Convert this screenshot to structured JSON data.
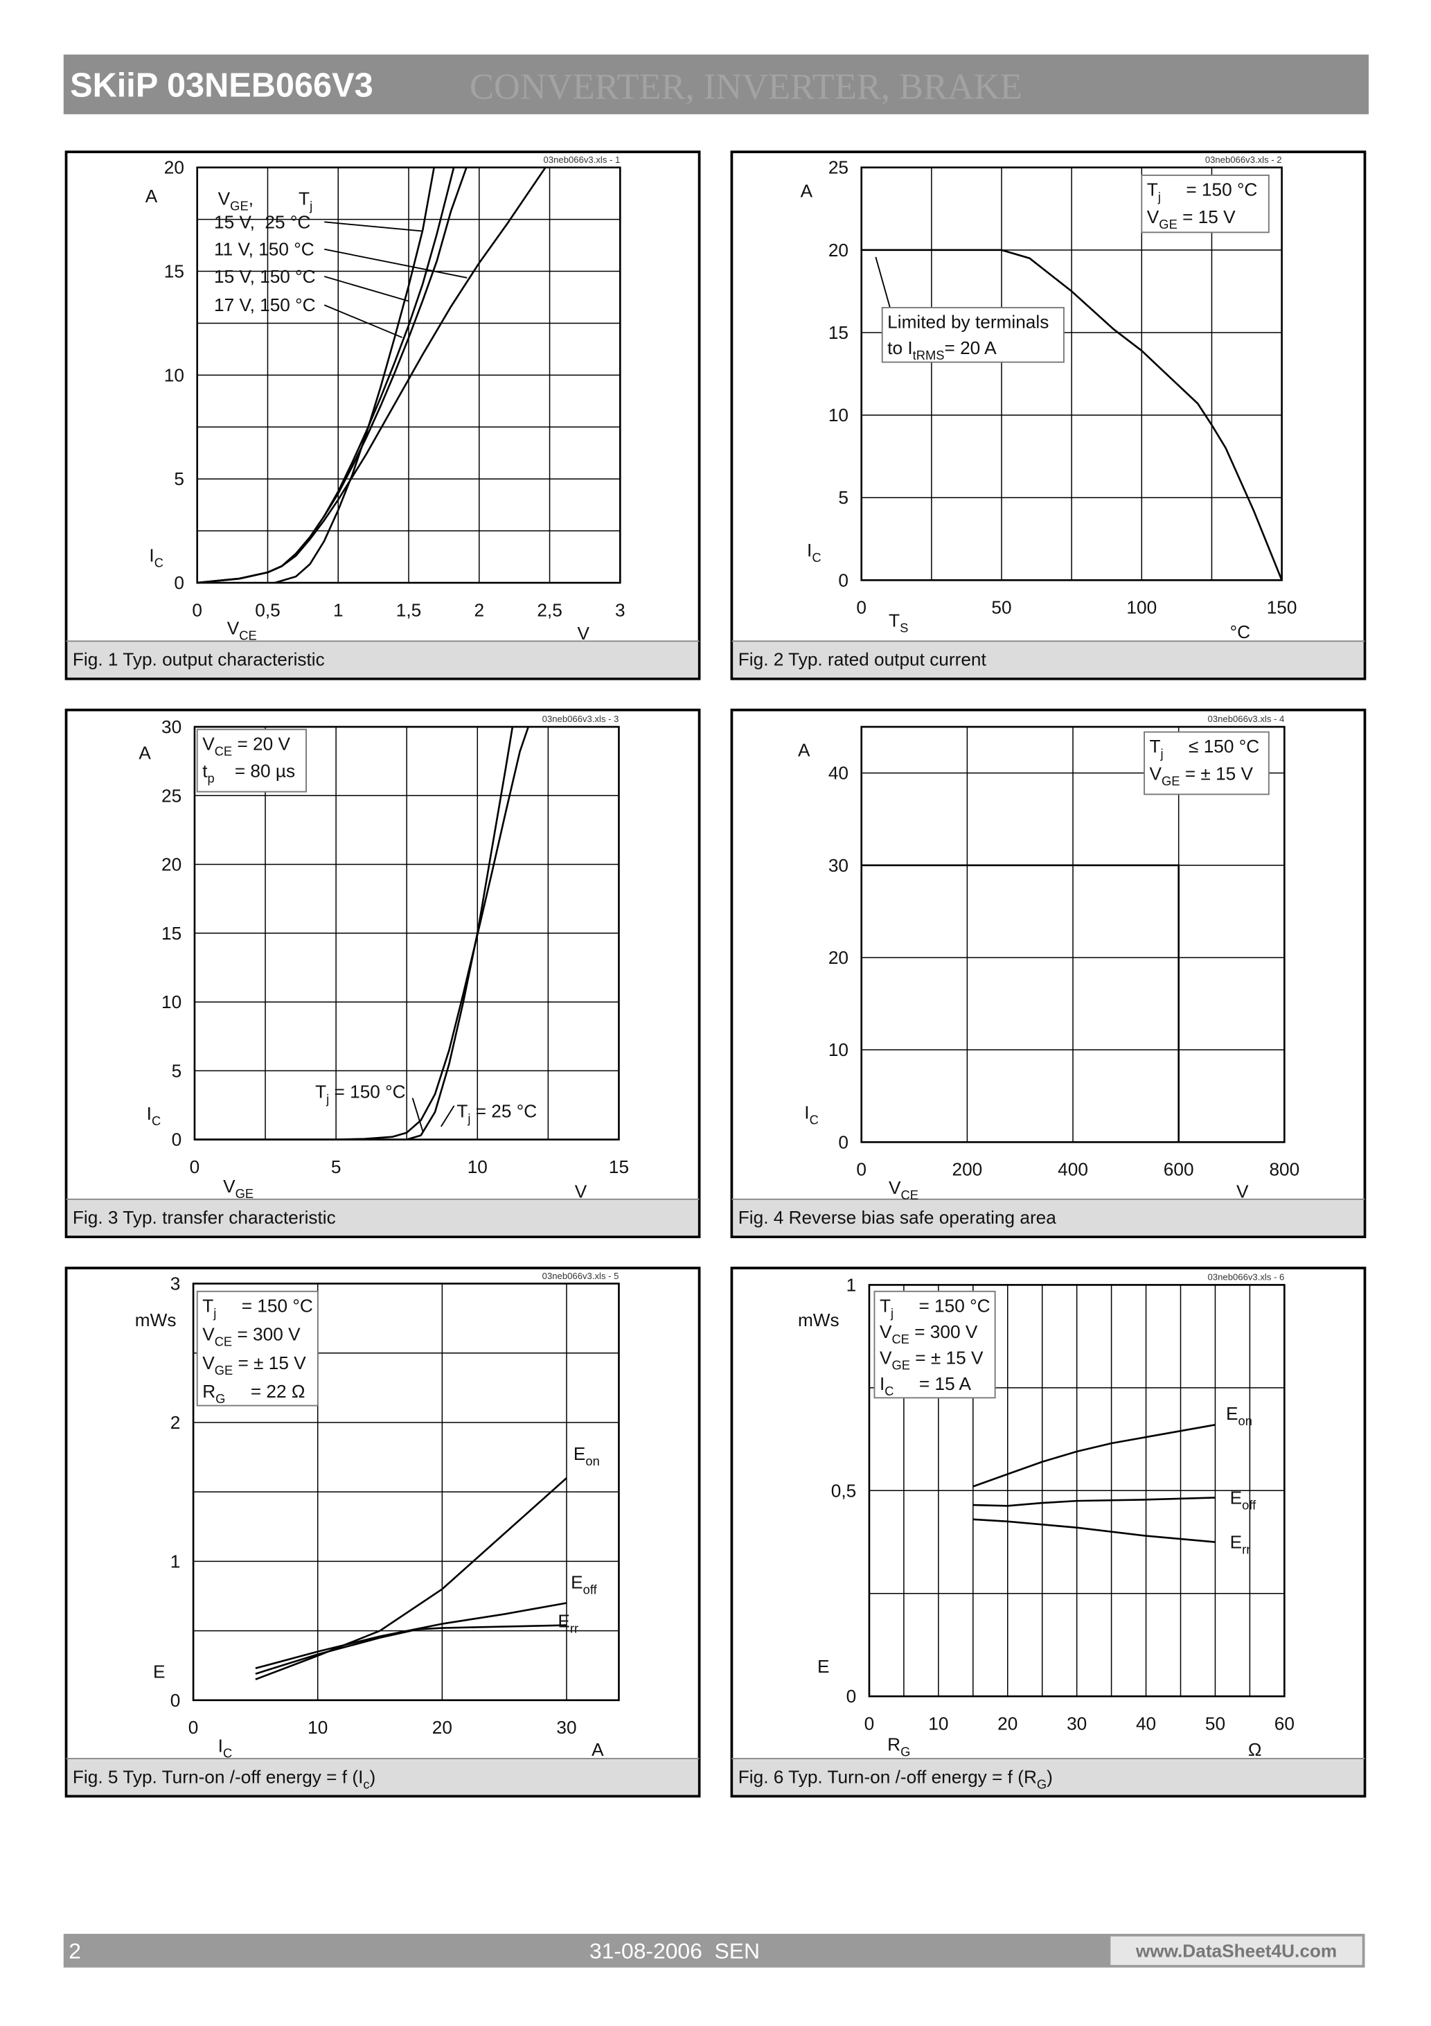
{
  "header": {
    "title": "SKiiP 03NEB066V3",
    "subtitle": "CONVERTER, INVERTER, BRAKE"
  },
  "footer": {
    "page": "2",
    "date": "31-08-2006  SEN",
    "site": "www.DataSheet4U.com"
  },
  "chart_data": [
    {
      "type": "line",
      "caption": [
        "Fig. 1 Typ. output characteristic"
      ],
      "file": "03neb066v3.xls - 1",
      "xlabel": [
        "V",
        "CE"
      ],
      "xunit": [
        "V"
      ],
      "ylabel": [
        "I",
        "C"
      ],
      "yunit": [
        "A"
      ],
      "color": "#000000",
      "xlim": [
        0,
        3
      ],
      "xticks": [
        0,
        {
          "value": 0.5,
          "label": "0,5"
        },
        1,
        {
          "value": 1.5,
          "label": "1,5"
        },
        2,
        {
          "value": 2.5,
          "label": "2,5"
        },
        3
      ],
      "ylim": [
        0,
        20
      ],
      "yticks": [
        0,
        5,
        10,
        15,
        20
      ],
      "ygrid_minor": [
        2.5,
        7.5,
        12.5,
        17.5
      ],
      "legend_title": [
        "V",
        "GE",
        ",         T",
        "j"
      ],
      "series": [
        {
          "name": [
            "15 V,  25 °C"
          ],
          "x": [
            0.55,
            0.7,
            0.8,
            0.9,
            1.0,
            1.1,
            1.2,
            1.3,
            1.4,
            1.5,
            1.6,
            1.68
          ],
          "values": [
            0,
            0.3,
            0.9,
            2,
            3.5,
            5.2,
            7.2,
            9.4,
            11.8,
            14.3,
            17,
            20
          ]
        },
        {
          "name": [
            "11 V, 150 °C"
          ],
          "x": [
            0,
            0.3,
            0.5,
            0.6,
            0.7,
            0.8,
            0.9,
            1.0,
            1.2,
            1.4,
            1.6,
            1.8,
            2.0,
            2.2,
            2.47
          ],
          "values": [
            0,
            0.2,
            0.5,
            0.8,
            1.3,
            2.1,
            3.0,
            4.0,
            6.2,
            8.6,
            11.0,
            13.3,
            15.4,
            17.3,
            20
          ]
        },
        {
          "name": [
            "15 V, 150 °C"
          ],
          "x": [
            0,
            0.3,
            0.5,
            0.6,
            0.7,
            0.8,
            0.9,
            1.0,
            1.1,
            1.2,
            1.3,
            1.4,
            1.5,
            1.6,
            1.7,
            1.8,
            1.91
          ],
          "values": [
            0,
            0.2,
            0.5,
            0.8,
            1.4,
            2.2,
            3.2,
            4.3,
            5.6,
            7.0,
            8.5,
            10.1,
            11.8,
            13.6,
            15.5,
            17.9,
            20
          ]
        },
        {
          "name": [
            "17 V, 150 °C"
          ],
          "x": [
            0,
            0.3,
            0.5,
            0.6,
            0.7,
            0.8,
            0.9,
            1.0,
            1.1,
            1.2,
            1.3,
            1.4,
            1.5,
            1.6,
            1.7,
            1.82
          ],
          "values": [
            0,
            0.2,
            0.5,
            0.8,
            1.4,
            2.2,
            3.2,
            4.4,
            5.8,
            7.3,
            8.9,
            10.6,
            12.4,
            14.4,
            16.8,
            20
          ]
        }
      ]
    },
    {
      "type": "line",
      "caption": [
        "Fig. 2 Typ. rated output current"
      ],
      "file": "03neb066v3.xls - 2",
      "xlabel": [
        "T",
        "S"
      ],
      "xunit": [
        "°C"
      ],
      "ylabel": [
        "I",
        "C"
      ],
      "yunit": [
        "A"
      ],
      "color": "#000000",
      "xlim": [
        0,
        150
      ],
      "xticks": [
        0,
        50,
        100,
        150
      ],
      "xgrid_minor": [
        25,
        75,
        125
      ],
      "ylim": [
        0,
        25
      ],
      "yticks": [
        0,
        5,
        10,
        15,
        20,
        25
      ],
      "boxes": [
        [
          [
            "T",
            "j",
            "     = 150 °C"
          ],
          [
            "V",
            "GE",
            " = 15 V"
          ]
        ],
        [
          [
            "Limited by terminals"
          ],
          [
            "to I",
            "tRMS",
            "= 20 A"
          ]
        ]
      ],
      "series": [
        {
          "x": [
            0,
            50,
            60,
            75,
            90,
            100,
            110,
            120,
            125,
            130,
            140,
            150
          ],
          "values": [
            20,
            20,
            19.5,
            17.5,
            15.2,
            13.9,
            12.3,
            10.7,
            9.4,
            8,
            4.2,
            0
          ]
        }
      ]
    },
    {
      "type": "line",
      "caption": [
        "Fig. 3 Typ. transfer characteristic"
      ],
      "file": "03neb066v3.xls - 3",
      "xlabel": [
        "V",
        "GE"
      ],
      "xunit": [
        "V"
      ],
      "ylabel": [
        "I",
        "C"
      ],
      "yunit": [
        "A"
      ],
      "color": "#000000",
      "xlim": [
        0,
        15
      ],
      "xticks": [
        0,
        5,
        10,
        15
      ],
      "xgrid_minor": [
        2.5,
        7.5,
        12.5
      ],
      "ylim": [
        0,
        30
      ],
      "yticks": [
        0,
        5,
        10,
        15,
        20,
        25,
        30
      ],
      "boxes": [
        [
          [
            "V",
            "CE",
            " = 20 V"
          ],
          [
            "t",
            "p",
            "    = 80 µs"
          ]
        ]
      ],
      "series": [
        {
          "name": [
            "T",
            "j",
            " = 150 °C"
          ],
          "x": [
            0,
            5,
            6,
            7,
            7.5,
            8,
            8.5,
            9,
            9.5,
            10,
            10.5,
            11,
            11.5,
            11.8
          ],
          "values": [
            0,
            0,
            0.05,
            0.2,
            0.5,
            1.4,
            3.3,
            6.5,
            10.6,
            14.9,
            19.3,
            23.8,
            28.2,
            30
          ]
        },
        {
          "name": [
            "T",
            "j",
            " = 25 °C"
          ],
          "x": [
            0,
            7.5,
            8,
            8.5,
            9,
            9.5,
            10,
            10.5,
            11,
            11.24
          ],
          "values": [
            0,
            0,
            0.3,
            2,
            5.5,
            10,
            15,
            21,
            27,
            30
          ]
        }
      ]
    },
    {
      "type": "line",
      "caption": [
        "Fig. 4 Reverse bias safe operating area"
      ],
      "file": "03neb066v3.xls - 4",
      "xlabel": [
        "V",
        "CE"
      ],
      "xunit": [
        "V"
      ],
      "ylabel": [
        "I",
        "C"
      ],
      "yunit": [
        "A"
      ],
      "color": "#000000",
      "xlim": [
        0,
        800
      ],
      "xticks": [
        0,
        200,
        400,
        600,
        800
      ],
      "ylim": [
        0,
        45
      ],
      "yticks": [
        0,
        10,
        20,
        30,
        40
      ],
      "boxes": [
        [
          [
            "T",
            "j",
            "     ≤ 150 °C"
          ],
          [
            "V",
            "GE",
            " = ± 15 V"
          ]
        ]
      ],
      "series": [
        {
          "x": [
            0,
            600,
            600
          ],
          "values": [
            30,
            30,
            0
          ]
        }
      ]
    },
    {
      "type": "line",
      "caption": [
        "Fig. 5 Typ. Turn-on /-off energy = f (I",
        "c",
        ")"
      ],
      "file": "03neb066v3.xls - 5",
      "xlabel": [
        "I",
        "C"
      ],
      "xunit": [
        "A"
      ],
      "ylabel": [
        "E"
      ],
      "yunit": [
        "mWs"
      ],
      "color": "#000000",
      "xlim": [
        0,
        34.2
      ],
      "xticks": [
        0,
        10,
        20,
        30
      ],
      "ylim": [
        0,
        3
      ],
      "yticks": [
        0,
        1,
        2,
        3
      ],
      "ygrid_minor": [
        0.5,
        1.5,
        2.5
      ],
      "boxes": [
        [
          [
            "T",
            "j",
            "     = 150 °C"
          ],
          [
            "V",
            "CE",
            " = 300 V"
          ],
          [
            "V",
            "GE",
            " = ± 15 V"
          ],
          [
            "R",
            "G",
            "     = 22 Ω"
          ]
        ]
      ],
      "series": [
        {
          "name": [
            "E",
            "on"
          ],
          "x": [
            5,
            10,
            15,
            20,
            25,
            30
          ],
          "values": [
            0.15,
            0.32,
            0.5,
            0.8,
            1.2,
            1.6
          ]
        },
        {
          "name": [
            "E",
            "off"
          ],
          "x": [
            5,
            10,
            15,
            20,
            25,
            30
          ],
          "values": [
            0.23,
            0.35,
            0.46,
            0.55,
            0.62,
            0.7
          ]
        },
        {
          "name": [
            "E",
            "rr"
          ],
          "x": [
            5,
            10,
            15,
            18,
            20,
            25,
            30
          ],
          "values": [
            0.19,
            0.33,
            0.45,
            0.51,
            0.52,
            0.53,
            0.54
          ]
        }
      ]
    },
    {
      "type": "line",
      "caption": [
        "Fig. 6 Typ. Turn-on /-off energy = f (R",
        "G",
        ")"
      ],
      "file": "03neb066v3.xls - 6",
      "xlabel": [
        "R",
        "G"
      ],
      "xunit": [
        "Ω"
      ],
      "ylabel": [
        "E"
      ],
      "yunit": [
        "mWs"
      ],
      "color": "#000000",
      "xlim": [
        0,
        60
      ],
      "xticks": [
        0,
        10,
        20,
        30,
        40,
        50,
        60
      ],
      "xgrid_minor": [
        5,
        15,
        25,
        35,
        45,
        55
      ],
      "ylim": [
        0,
        1
      ],
      "yticks": [
        0,
        {
          "value": 0.5,
          "label": "0,5"
        },
        1
      ],
      "ygrid_minor": [
        0.25,
        0.75
      ],
      "boxes": [
        [
          [
            "T",
            "j",
            "     = 150 °C"
          ],
          [
            "V",
            "CE",
            " = 300 V"
          ],
          [
            "V",
            "GE",
            " = ± 15 V"
          ],
          [
            "I",
            "C",
            "     = 15 A"
          ]
        ]
      ],
      "series": [
        {
          "name": [
            "E",
            "on"
          ],
          "x": [
            15,
            20,
            25,
            30,
            35,
            40,
            45,
            50
          ],
          "values": [
            0.51,
            0.54,
            0.57,
            0.595,
            0.615,
            0.63,
            0.645,
            0.66
          ]
        },
        {
          "name": [
            "E",
            "off"
          ],
          "x": [
            15,
            20,
            25,
            30,
            40,
            50
          ],
          "values": [
            0.465,
            0.463,
            0.47,
            0.475,
            0.478,
            0.483
          ]
        },
        {
          "name": [
            "E",
            "rr"
          ],
          "x": [
            15,
            20,
            30,
            40,
            50
          ],
          "values": [
            0.43,
            0.425,
            0.41,
            0.39,
            0.375
          ]
        }
      ]
    }
  ]
}
